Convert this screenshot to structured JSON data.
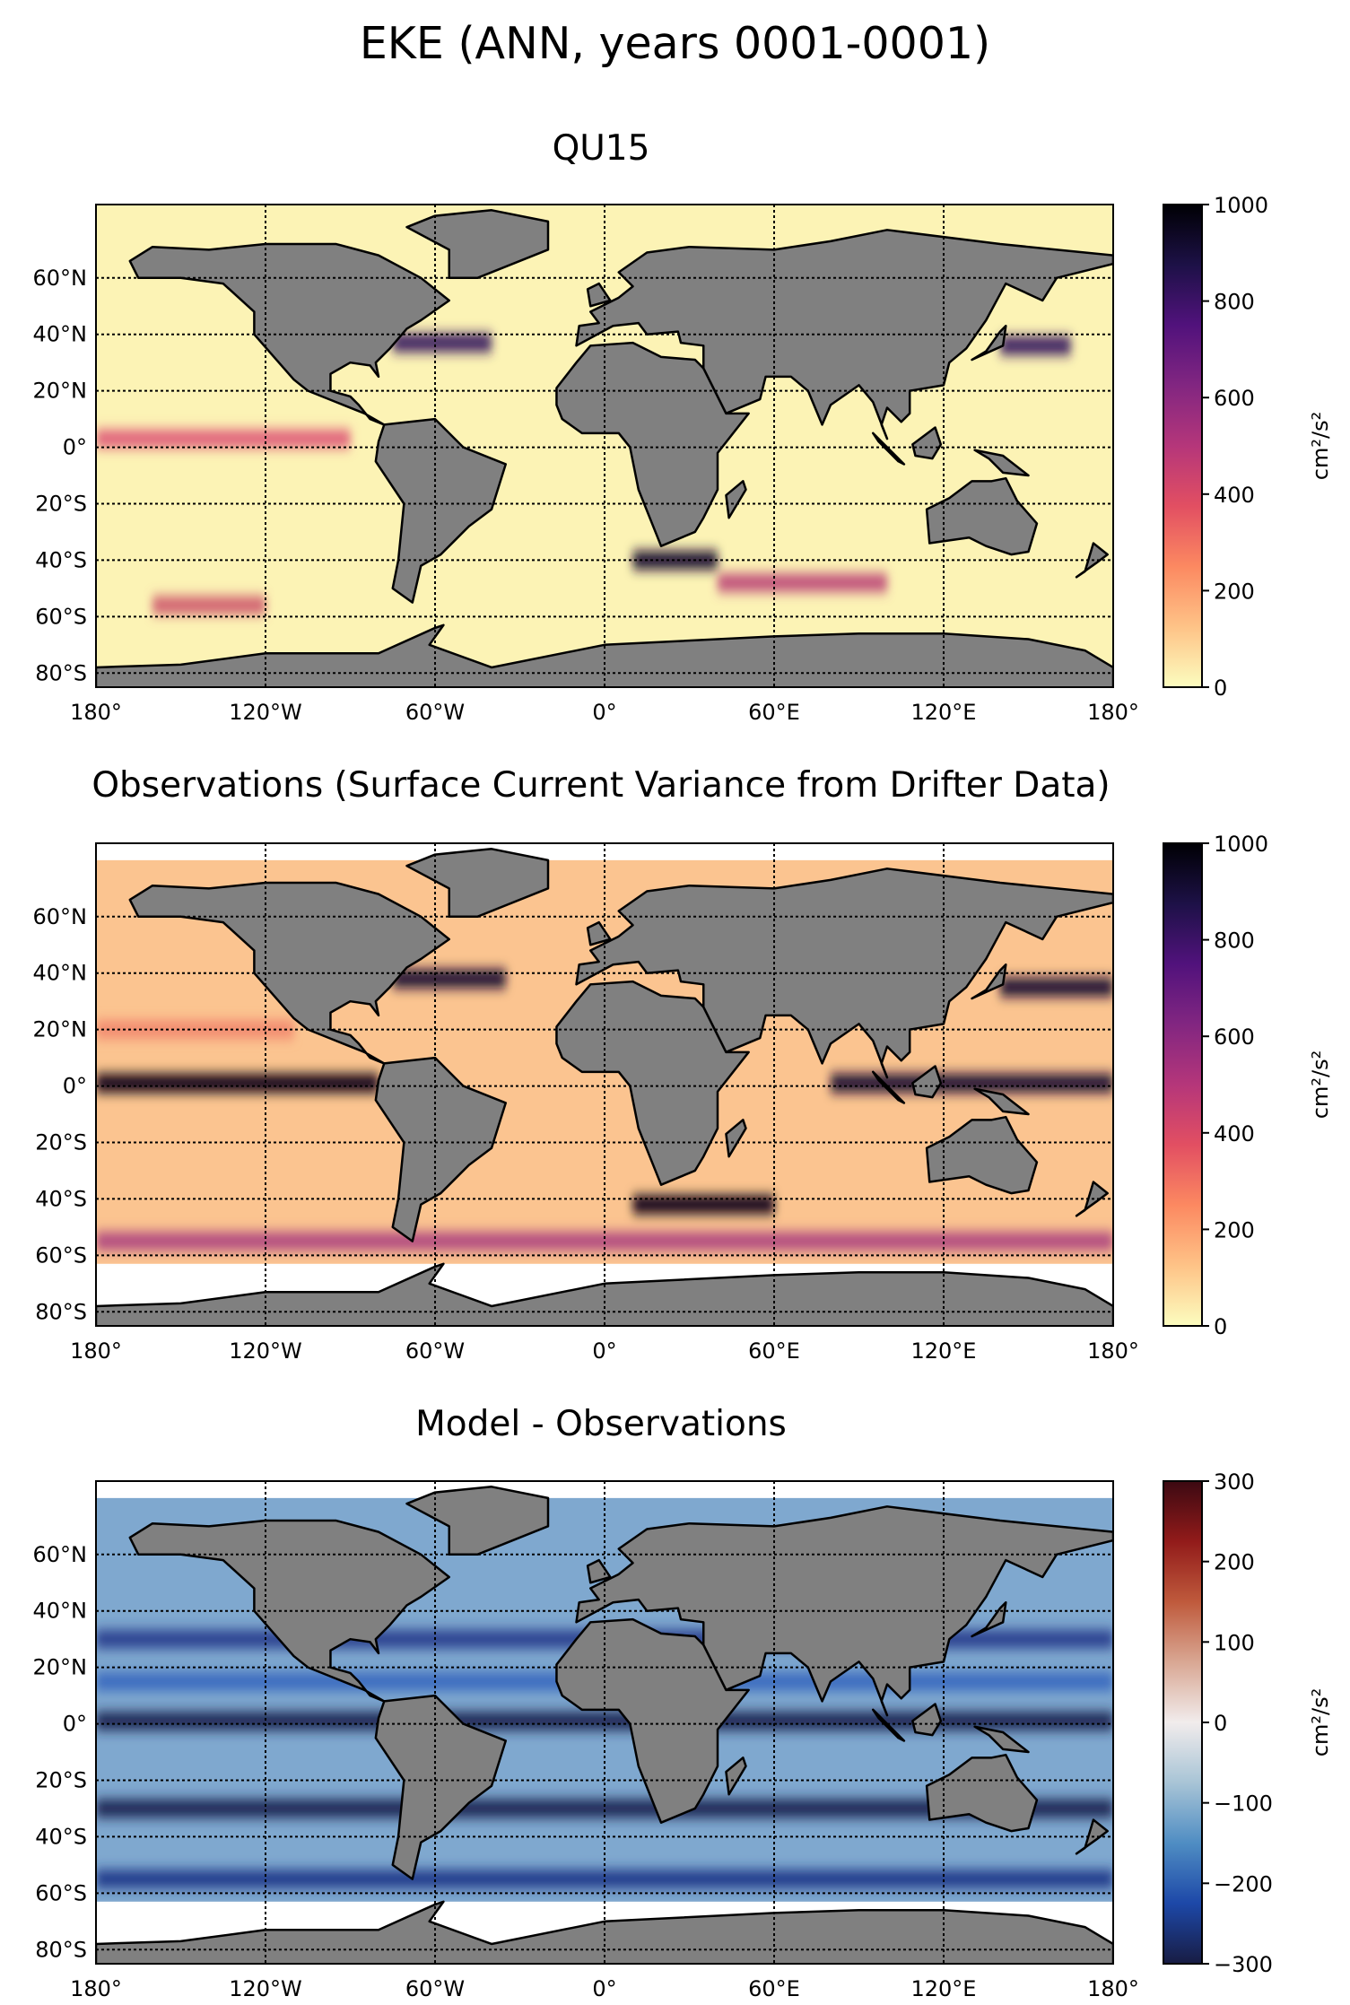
{
  "suptitle": "EKE (ANN, years 0001-0001)",
  "chart_data": [
    {
      "type": "heatmap",
      "title": "QU15",
      "lon_ticks": [
        "180°",
        "120°W",
        "60°W",
        "0°",
        "60°E",
        "120°E",
        "180°"
      ],
      "lat_ticks": [
        "60°N",
        "40°N",
        "20°N",
        "0°",
        "20°S",
        "40°S",
        "60°S",
        "80°S"
      ],
      "colorbar": {
        "ticks": [
          "0",
          "200",
          "400",
          "600",
          "800",
          "1000"
        ],
        "range": [
          0,
          1000
        ],
        "label": "cm²/s²",
        "cmap": "magma_r"
      },
      "background": "#fcf3b5",
      "bands": [
        {
          "lat": 3,
          "lon0": -180,
          "lon1": -90,
          "val": "#e0607a"
        },
        {
          "lat": 37,
          "lon0": -75,
          "lon1": -40,
          "val": "#3a1a60"
        },
        {
          "lat": -40,
          "lon0": 10,
          "lon1": 40,
          "val": "#1a0a30"
        },
        {
          "lat": -48,
          "lon0": 40,
          "lon1": 100,
          "val": "#c0507a"
        },
        {
          "lat": -56,
          "lon0": -160,
          "lon1": -120,
          "val": "#d06070"
        },
        {
          "lat": 36,
          "lon0": 140,
          "lon1": 165,
          "val": "#3a1a60"
        }
      ]
    },
    {
      "type": "heatmap",
      "title": "Observations (Surface Current Variance from Drifter Data)",
      "lon_ticks": [
        "180°",
        "120°W",
        "60°W",
        "0°",
        "60°E",
        "120°E",
        "180°"
      ],
      "lat_ticks": [
        "60°N",
        "40°N",
        "20°N",
        "0°",
        "20°S",
        "40°S",
        "60°S",
        "80°S"
      ],
      "colorbar": {
        "ticks": [
          "0",
          "200",
          "400",
          "600",
          "800",
          "1000"
        ],
        "range": [
          0,
          1000
        ],
        "label": "cm²/s²",
        "cmap": "magma_r"
      },
      "background": "#fbc490",
      "bands": [
        {
          "lat": 1,
          "lon0": -180,
          "lon1": -80,
          "val": "#0a0515"
        },
        {
          "lat": 1,
          "lon0": 80,
          "lon1": 180,
          "val": "#1a0a30"
        },
        {
          "lat": 38,
          "lon0": -75,
          "lon1": -35,
          "val": "#1a0a30"
        },
        {
          "lat": -42,
          "lon0": 10,
          "lon1": 60,
          "val": "#0a0515"
        },
        {
          "lat": 35,
          "lon0": 140,
          "lon1": 180,
          "val": "#1a0a30"
        },
        {
          "lat": 20,
          "lon0": -180,
          "lon1": -110,
          "val": "#f28a70"
        },
        {
          "lat": -55,
          "lon0": -180,
          "lon1": 180,
          "val": "#b04a80"
        }
      ]
    },
    {
      "type": "heatmap",
      "title": "Model - Observations",
      "lon_ticks": [
        "180°",
        "120°W",
        "60°W",
        "0°",
        "60°E",
        "120°E",
        "180°"
      ],
      "lat_ticks": [
        "60°N",
        "40°N",
        "20°N",
        "0°",
        "20°S",
        "40°S",
        "60°S",
        "80°S"
      ],
      "colorbar": {
        "ticks": [
          "−300",
          "−200",
          "−100",
          "0",
          "100",
          "200",
          "300"
        ],
        "range": [
          -300,
          300
        ],
        "label": "cm²/s²",
        "cmap": "balance"
      },
      "background": "#7fa8cf",
      "bands": [
        {
          "lat": 1,
          "lon0": -180,
          "lon1": 180,
          "val": "#1e2552"
        },
        {
          "lat": 30,
          "lon0": -180,
          "lon1": 180,
          "val": "#2a3f8f"
        },
        {
          "lat": -30,
          "lon0": -180,
          "lon1": 180,
          "val": "#1e2552"
        },
        {
          "lat": -55,
          "lon0": -180,
          "lon1": 180,
          "val": "#213a8a"
        },
        {
          "lat": 15,
          "lon0": -180,
          "lon1": 180,
          "val": "#3a6bbf"
        }
      ]
    }
  ]
}
